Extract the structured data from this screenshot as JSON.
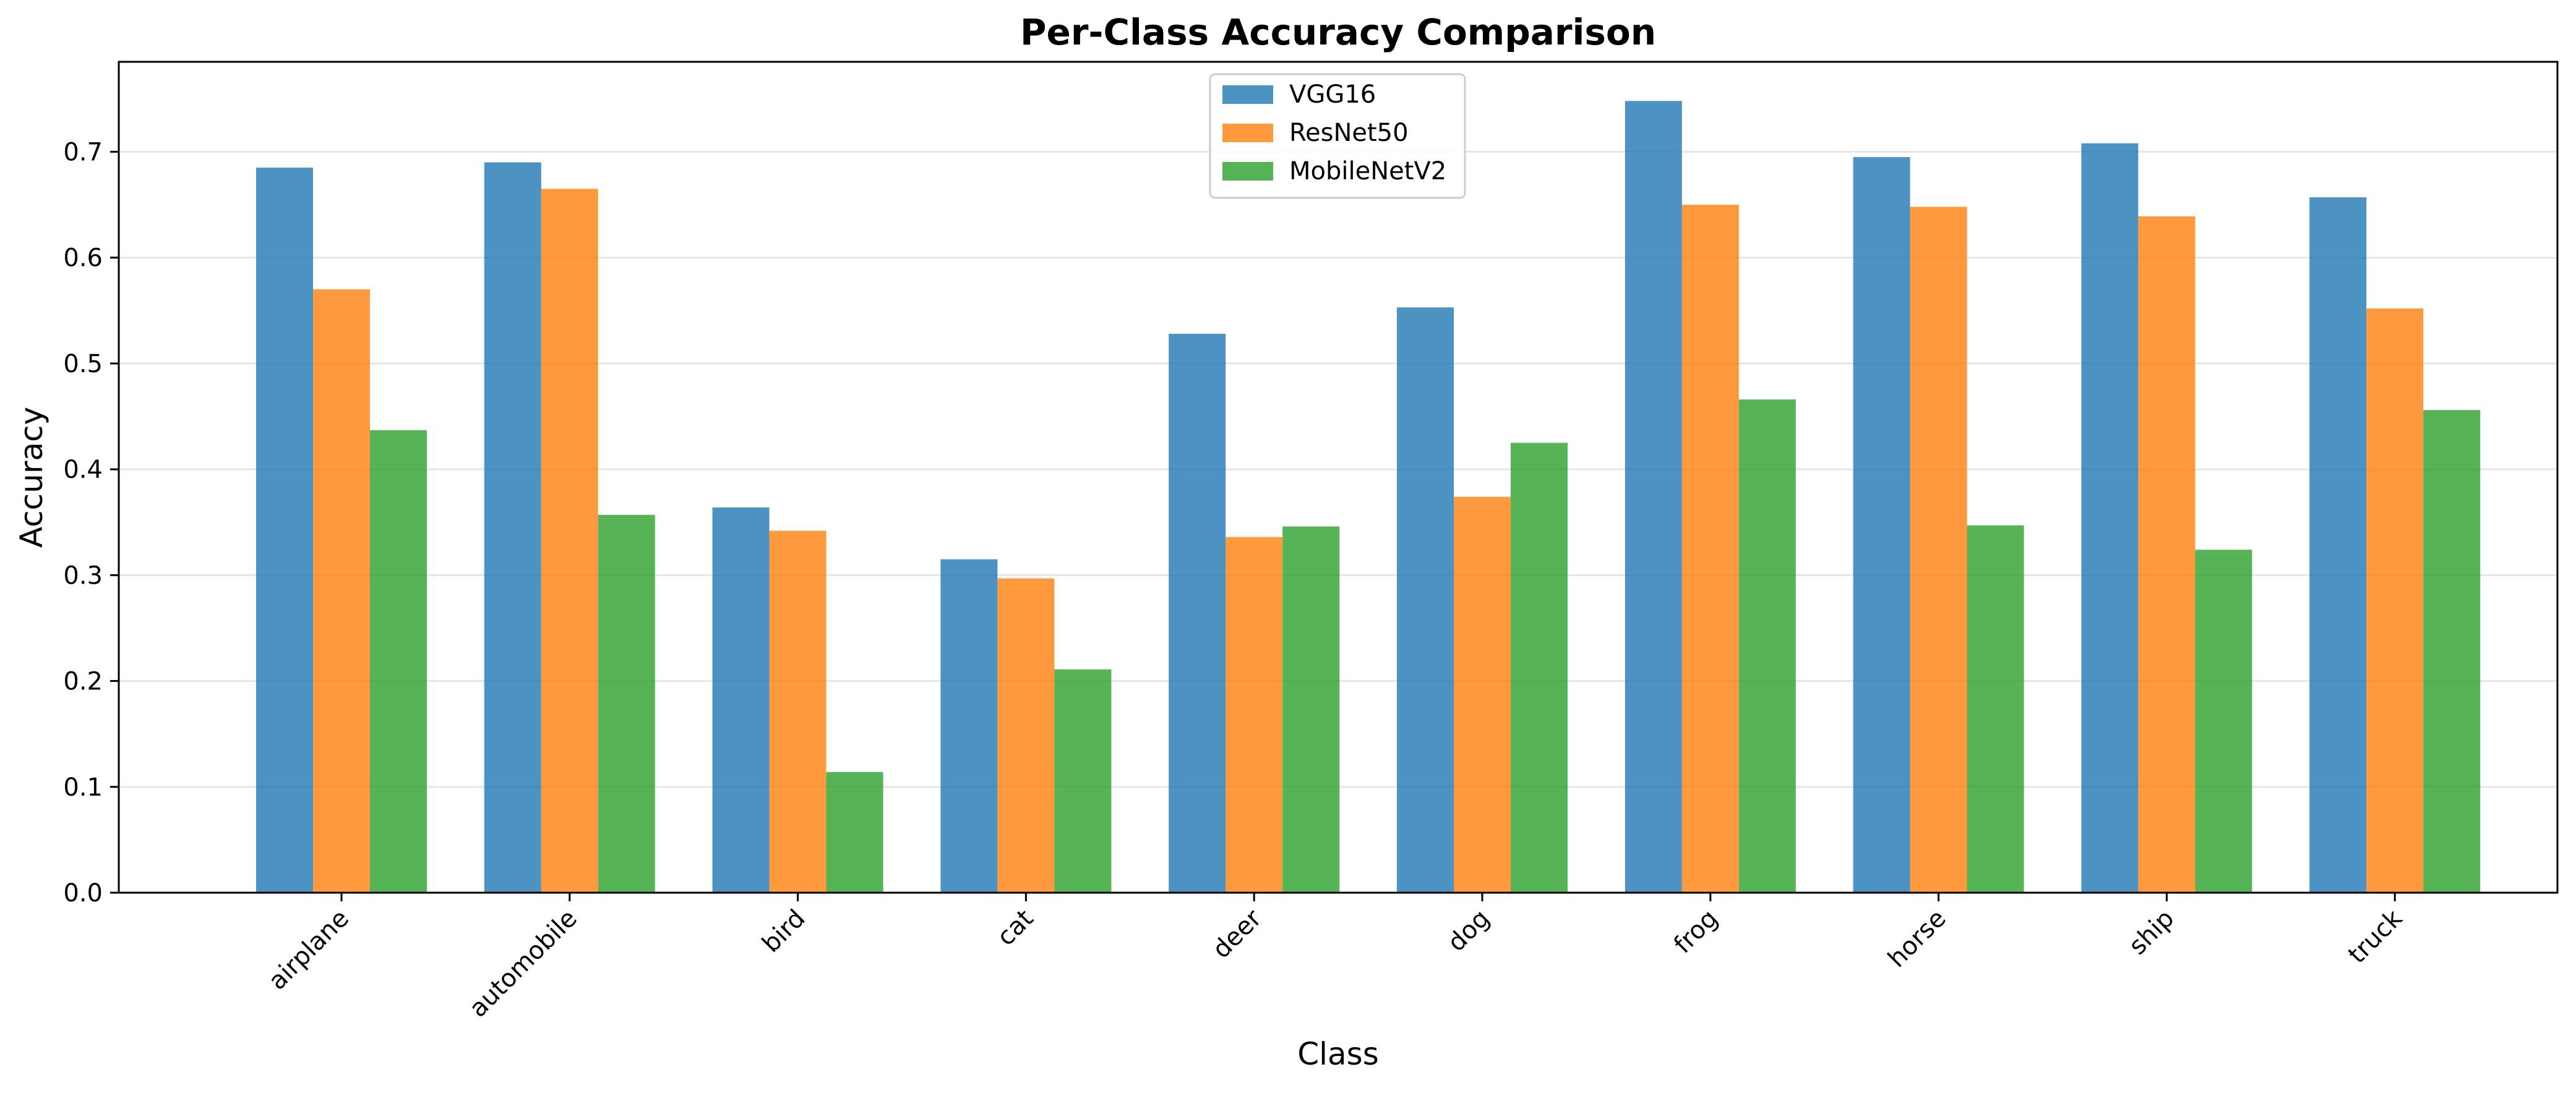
{
  "chart_data": {
    "type": "bar",
    "title": "Per-Class Accuracy Comparison",
    "xlabel": "Class",
    "ylabel": "Accuracy",
    "ylim": [
      0,
      0.785
    ],
    "yticks": [
      0.0,
      0.1,
      0.2,
      0.3,
      0.4,
      0.5,
      0.6,
      0.7
    ],
    "ytick_labels": [
      "0.0",
      "0.1",
      "0.2",
      "0.3",
      "0.4",
      "0.5",
      "0.6",
      "0.7"
    ],
    "grid": "horizontal",
    "legend_position": "top-center",
    "categories": [
      "airplane",
      "automobile",
      "bird",
      "cat",
      "deer",
      "dog",
      "frog",
      "horse",
      "ship",
      "truck"
    ],
    "series": [
      {
        "name": "VGG16",
        "color": "#1f77b4",
        "values": [
          0.685,
          0.69,
          0.364,
          0.315,
          0.528,
          0.553,
          0.748,
          0.695,
          0.708,
          0.657
        ]
      },
      {
        "name": "ResNet50",
        "color": "#ff7f0e",
        "values": [
          0.57,
          0.665,
          0.342,
          0.297,
          0.336,
          0.374,
          0.65,
          0.648,
          0.639,
          0.552
        ]
      },
      {
        "name": "MobileNetV2",
        "color": "#2ca02c",
        "values": [
          0.437,
          0.357,
          0.114,
          0.211,
          0.346,
          0.425,
          0.466,
          0.347,
          0.324,
          0.456
        ]
      }
    ]
  }
}
